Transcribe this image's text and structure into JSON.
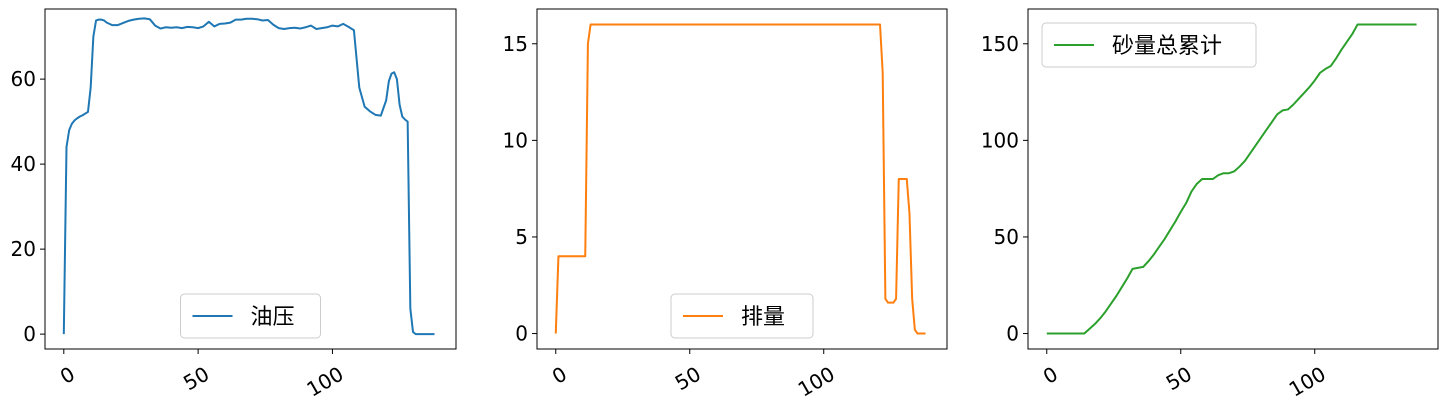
{
  "chart_data": [
    {
      "type": "line",
      "xlim": [
        -7,
        146
      ],
      "ylim": [
        -3.5,
        76.5
      ],
      "xticks": [
        0,
        50,
        100
      ],
      "yticks": [
        0,
        20,
        40,
        60
      ],
      "xtick_labels": [
        "0",
        "50",
        "100"
      ],
      "ytick_labels": [
        "0",
        "20",
        "40",
        "60"
      ],
      "legend_position": "lower center",
      "series": [
        {
          "name": "油压",
          "color": "#1f77b4",
          "x": [
            0,
            1,
            2,
            3,
            4,
            5,
            6,
            7,
            8,
            9,
            10,
            11,
            12,
            13,
            14,
            15,
            16,
            17,
            18,
            19,
            20,
            22,
            24,
            26,
            28,
            30,
            32,
            34,
            36,
            38,
            40,
            42,
            44,
            46,
            48,
            50,
            52,
            54,
            56,
            58,
            60,
            62,
            64,
            66,
            68,
            70,
            72,
            74,
            76,
            78,
            80,
            82,
            84,
            86,
            88,
            90,
            92,
            94,
            96,
            98,
            100,
            102,
            104,
            106,
            108,
            110,
            112,
            114,
            116,
            118,
            120,
            121,
            122,
            123,
            124,
            125,
            126,
            127,
            128,
            129,
            130,
            131,
            132,
            133,
            134,
            135,
            136,
            137,
            138
          ],
          "y": [
            0,
            44,
            48,
            49.5,
            50.3,
            50.8,
            51.2,
            51.5,
            51.9,
            52.3,
            58,
            70,
            73.8,
            74,
            74,
            73.8,
            73.3,
            73,
            72.7,
            72.7,
            72.7,
            73.2,
            73.7,
            74,
            74.2,
            74.3,
            74.1,
            72.6,
            71.9,
            72.2,
            72.1,
            72.2,
            72,
            72.3,
            72.2,
            72,
            72.4,
            73.5,
            72.4,
            73,
            73.1,
            73.3,
            74,
            74,
            74.2,
            74.2,
            74.1,
            73.8,
            73.9,
            72.8,
            72,
            71.8,
            72,
            72.1,
            71.9,
            72.2,
            72.6,
            71.8,
            72,
            72.2,
            72.6,
            72.4,
            73,
            72.3,
            71.5,
            58,
            53.5,
            52.4,
            51.6,
            51.4,
            55,
            59.5,
            61.3,
            61.6,
            60,
            54,
            51.2,
            50.5,
            50,
            6,
            0.5,
            0,
            0,
            0,
            0,
            0,
            0,
            0,
            0
          ]
        }
      ]
    },
    {
      "type": "line",
      "xlim": [
        -7,
        146
      ],
      "ylim": [
        -0.8,
        16.8
      ],
      "xticks": [
        0,
        50,
        100
      ],
      "yticks": [
        0,
        5,
        10,
        15
      ],
      "xtick_labels": [
        "0",
        "50",
        "100"
      ],
      "ytick_labels": [
        "0",
        "5",
        "10",
        "15"
      ],
      "legend_position": "lower center",
      "series": [
        {
          "name": "排量",
          "color": "#ff7f0e",
          "x": [
            0,
            1,
            2,
            3,
            4,
            5,
            6,
            7,
            8,
            9,
            10,
            11,
            12,
            13,
            14,
            15,
            20,
            30,
            40,
            50,
            60,
            70,
            80,
            90,
            100,
            110,
            115,
            120,
            121,
            122,
            123,
            124,
            125,
            126,
            127,
            128,
            129,
            130,
            131,
            132,
            133,
            134,
            135,
            136,
            137,
            138
          ],
          "y": [
            0,
            4,
            4,
            4,
            4,
            4,
            4,
            4,
            4,
            4,
            4,
            4,
            15,
            16,
            16,
            16,
            16,
            16,
            16,
            16,
            16,
            16,
            16,
            16,
            16,
            16,
            16,
            16,
            16,
            13.5,
            1.8,
            1.6,
            1.6,
            1.6,
            1.8,
            8,
            8,
            8,
            8,
            6.2,
            1.8,
            0.2,
            0,
            0,
            0,
            0
          ]
        }
      ]
    },
    {
      "type": "line",
      "xlim": [
        -7,
        146
      ],
      "ylim": [
        -8,
        168
      ],
      "xticks": [
        0,
        50,
        100
      ],
      "yticks": [
        0,
        50,
        100,
        150
      ],
      "xtick_labels": [
        "0",
        "50",
        "100"
      ],
      "ytick_labels": [
        "0",
        "50",
        "100",
        "150"
      ],
      "legend_position": "upper left",
      "series": [
        {
          "name": "砂量总累计",
          "color": "#2ca02c",
          "x": [
            0,
            5,
            10,
            14,
            16,
            18,
            20,
            22,
            24,
            26,
            28,
            30,
            32,
            34,
            36,
            38,
            40,
            42,
            44,
            46,
            48,
            50,
            52,
            54,
            56,
            58,
            60,
            62,
            64,
            66,
            68,
            70,
            72,
            74,
            76,
            78,
            80,
            82,
            84,
            86,
            88,
            90,
            92,
            94,
            96,
            98,
            100,
            102,
            104,
            106,
            108,
            110,
            112,
            114,
            116,
            118,
            120,
            125,
            130,
            135,
            138
          ],
          "y": [
            0,
            0,
            0,
            0,
            2.5,
            5,
            8,
            11.5,
            15.5,
            19.5,
            24,
            28.5,
            33.5,
            34,
            34.5,
            37.5,
            41,
            45,
            49,
            53.5,
            58,
            63,
            67.5,
            73.5,
            77.5,
            80,
            80,
            80,
            82,
            83,
            83,
            84,
            86.5,
            89.5,
            93.5,
            97.5,
            101.5,
            105.5,
            109.5,
            113.5,
            115.5,
            116,
            118.5,
            121.5,
            124.5,
            127.5,
            131,
            135,
            137,
            138.5,
            142.5,
            147,
            151,
            155,
            160,
            160,
            160,
            160,
            160,
            160,
            160
          ]
        }
      ]
    }
  ]
}
